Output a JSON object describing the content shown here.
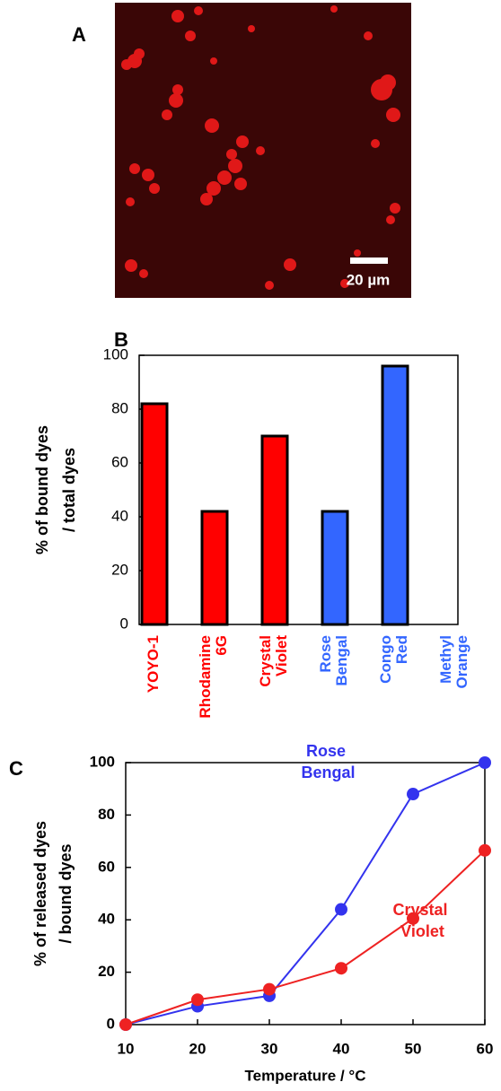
{
  "panel_a": {
    "label": "A",
    "scale_bar": "20 µm"
  },
  "chart_data": [
    {
      "type": "bar",
      "panel_label": "B",
      "ylabel": [
        "% of bound dyes",
        "/ total dyes"
      ],
      "categories": [
        "YOYO-1",
        "Rhodamine 6G",
        "Crystal Violet",
        "Rose Bengal",
        "Congo Red",
        "Methyl Orange"
      ],
      "values": [
        82,
        42,
        70,
        42,
        96,
        0
      ],
      "colors": [
        "#ff0000",
        "#ff0000",
        "#ff0000",
        "#3366ff",
        "#3366ff",
        "#3366ff"
      ],
      "ylim": [
        0,
        100
      ],
      "yticks": [
        0,
        20,
        40,
        60,
        80,
        100
      ]
    },
    {
      "type": "line",
      "panel_label": "C",
      "ylabel": [
        "% of released dyes",
        "/ bound dyes"
      ],
      "xlabel": "Temperature / °C",
      "x": [
        10,
        20,
        30,
        40,
        50,
        60
      ],
      "series": [
        {
          "name": "Rose Bengal",
          "color": "#3333ee",
          "values": [
            0,
            7,
            11,
            44,
            88,
            100
          ]
        },
        {
          "name": "Crystal Violet",
          "color": "#ee2222",
          "values": [
            0,
            9.5,
            13.5,
            21.5,
            40.5,
            66.5
          ]
        }
      ],
      "xlim": [
        10,
        60
      ],
      "xticks": [
        10,
        20,
        30,
        40,
        50,
        60
      ],
      "ylim": [
        0,
        100
      ],
      "yticks": [
        0,
        20,
        40,
        60,
        80,
        100
      ]
    }
  ]
}
